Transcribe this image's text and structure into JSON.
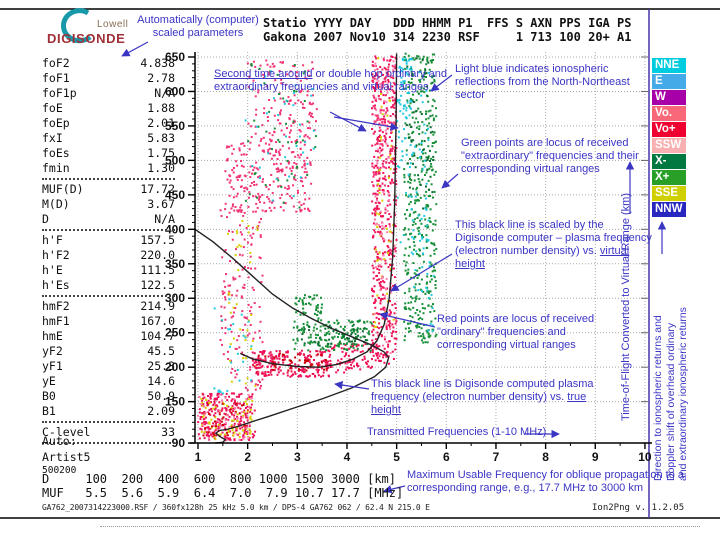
{
  "logo": {
    "line1": "Lowell",
    "line2": "DIGISONDE"
  },
  "station_header": {
    "line1": "Statio YYYY DAY   DDD HHMM P1  FFS S AXN PPS IGA PS",
    "line2": "Gakona 2007 Nov10 314 2230 RSF     1 713 100 20+ A1"
  },
  "param_groups": [
    [
      {
        "name": "foF2",
        "value": "4.838"
      },
      {
        "name": "foF1",
        "value": "2.78"
      },
      {
        "name": "foF1p",
        "value": "N/A"
      },
      {
        "name": "foE",
        "value": "1.88"
      },
      {
        "name": "foEp",
        "value": "2.01"
      },
      {
        "name": "fxI",
        "value": "5.83"
      },
      {
        "name": "foEs",
        "value": "1.75"
      },
      {
        "name": "fmin",
        "value": "1.30"
      }
    ],
    [
      {
        "name": "MUF(D)",
        "value": "17.72"
      },
      {
        "name": "M(D)",
        "value": "3.67"
      },
      {
        "name": "D",
        "value": "N/A"
      }
    ],
    [
      {
        "name": "h'F",
        "value": "157.5"
      },
      {
        "name": "h'F2",
        "value": "220.0"
      },
      {
        "name": "h'E",
        "value": "111.5"
      },
      {
        "name": "h'Es",
        "value": "122.5"
      }
    ],
    [
      {
        "name": "hmF2",
        "value": "214.9"
      },
      {
        "name": "hmF1",
        "value": "167.0"
      },
      {
        "name": "hmE",
        "value": "104.7"
      },
      {
        "name": "yF2",
        "value": "45.5"
      },
      {
        "name": "yF1",
        "value": "25.3"
      },
      {
        "name": "yE",
        "value": "14.6"
      },
      {
        "name": "B0",
        "value": "50.9"
      },
      {
        "name": "B1",
        "value": "2.09"
      }
    ],
    [
      {
        "name": "C-level",
        "value": "33"
      }
    ]
  ],
  "misc": {
    "auto_label": "Auto:",
    "artist": "Artist5",
    "code": "500200"
  },
  "muf_table": {
    "d_row": [
      "D",
      "100",
      "200",
      "400",
      "600",
      "800",
      "1000",
      "1500",
      "3000",
      "[km]"
    ],
    "muf_row": [
      "MUF",
      "5.5",
      "5.6",
      "5.9",
      "6.4",
      "7.0",
      "7.9",
      "10.7",
      "17.7",
      "[MHz]"
    ]
  },
  "footer": {
    "left": "GA762_2007314223000.RSF / 360fx128h 25 kHz 5.0 km / DPS-4 GA762 062 / 62.4 N 215.0 E",
    "right": "Ion2Png v. 1.2.05"
  },
  "legend": [
    {
      "label": "NNE",
      "color": "#00cce0"
    },
    {
      "label": "E",
      "color": "#44aae8"
    },
    {
      "label": "W",
      "color": "#a800a8"
    },
    {
      "label": "Vo.",
      "color": "#f86878"
    },
    {
      "label": "Vo+",
      "color": "#f00030"
    },
    {
      "label": "SSW",
      "color": "#f8b0b0"
    },
    {
      "label": "X-",
      "color": "#007840"
    },
    {
      "label": "X+",
      "color": "#28a028"
    },
    {
      "label": "SSE",
      "color": "#d0d000"
    },
    {
      "label": "NNW",
      "color": "#2828c0"
    }
  ],
  "vertical_labels": {
    "time_of_flight": "Time-of-Flight Converted to Virtual Range (km)",
    "direction_lines": [
      "Direction to ionospheric returns and",
      "Doppler shift of overhead ordinary",
      "and extraordinary ionospheric returns"
    ]
  },
  "annotations": [
    {
      "id": "auto-scaled",
      "parts": [
        {
          "t": "Automatically (computer) scaled parameters"
        }
      ]
    },
    {
      "id": "second-time-around",
      "parts": [
        {
          "t": "Second time around",
          "u": 1
        },
        {
          "t": " or double hop ordinary and extraordinary frequencies and virtual ranges"
        }
      ]
    },
    {
      "id": "light-blue",
      "parts": [
        {
          "t": "Light blue indicates ionospheric reflections from the North-Northeast sector"
        }
      ]
    },
    {
      "id": "green-points",
      "parts": [
        {
          "t": "Green points are locus of received \"extraordinary\" frequencies and their corresponding virtual ranges"
        }
      ]
    },
    {
      "id": "black-line-virtual",
      "parts": [
        {
          "t": "This black line is scaled by the Digisonde computer – plasma frequency (electron number density) vs. "
        },
        {
          "t": "virtual height",
          "u": 1
        }
      ]
    },
    {
      "id": "red-points",
      "parts": [
        {
          "t": "Red points are locus of received \"ordinary\" frequencies and corresponding virtual ranges"
        }
      ]
    },
    {
      "id": "black-line-true",
      "parts": [
        {
          "t": "This black line is Digisonde computed plasma frequency (electron number density) vs. "
        },
        {
          "t": "true height",
          "u": 1
        }
      ]
    },
    {
      "id": "transmitted-freq",
      "parts": [
        {
          "t": "Transmitted Frequencies (1-10 MHz)"
        }
      ]
    },
    {
      "id": "muf-oblique",
      "parts": [
        {
          "t": "Maximum Usable Frequency for oblique propagation to a corresponding range, e.g., 17.7 MHz to 3000 km"
        }
      ]
    }
  ],
  "chart_data": {
    "type": "scatter",
    "xlabel": "Transmitted Frequencies (1-10 MHz)",
    "ylabel": "Time-of-Flight Converted to Virtual Range (km)",
    "xlim": [
      1,
      10
    ],
    "ylim": [
      90,
      650
    ],
    "x_ticks": [
      1,
      2,
      3,
      4,
      5,
      6,
      7,
      8,
      9,
      10
    ],
    "y_ticks": [
      650,
      600,
      550,
      500,
      450,
      400,
      350,
      300,
      250,
      200,
      150,
      90
    ],
    "grid": true,
    "clusters": [
      {
        "x": [
          1.0,
          2.15
        ],
        "y": [
          93,
          162
        ],
        "n": 260,
        "color": "#ee1155"
      },
      {
        "x": [
          1.05,
          2.1
        ],
        "y": [
          95,
          155
        ],
        "n": 70,
        "color": "#d8d000"
      },
      {
        "x": [
          1.1,
          2.0
        ],
        "y": [
          100,
          150
        ],
        "n": 30,
        "color": "#c80000"
      },
      {
        "x": [
          1.0,
          2.1
        ],
        "y": [
          93,
          160
        ],
        "n": 50,
        "color": "#ff7faf"
      },
      {
        "x": [
          1.45,
          2.3
        ],
        "y": [
          165,
          435
        ],
        "n": 150,
        "color": "#ee3377"
      },
      {
        "x": [
          1.6,
          2.2
        ],
        "y": [
          170,
          430
        ],
        "n": 40,
        "color": "#d8d000"
      },
      {
        "x": [
          1.2,
          2.1
        ],
        "y": [
          160,
          300
        ],
        "n": 25,
        "color": "#20c8e0"
      },
      {
        "x": [
          2.1,
          3.65
        ],
        "y": [
          186,
          224
        ],
        "n": 220,
        "color": "#ee1155"
      },
      {
        "x": [
          2.2,
          3.6
        ],
        "y": [
          195,
          220
        ],
        "n": 40,
        "color": "#c80000"
      },
      {
        "x": [
          3.6,
          4.55
        ],
        "y": [
          192,
          235
        ],
        "n": 90,
        "color": "#ee1155"
      },
      {
        "x": [
          4.5,
          5.0
        ],
        "y": [
          205,
          655
        ],
        "n": 480,
        "color": "#ee1155"
      },
      {
        "x": [
          4.55,
          4.95
        ],
        "y": [
          250,
          650
        ],
        "n": 50,
        "color": "#d8d000"
      },
      {
        "x": [
          4.55,
          4.95
        ],
        "y": [
          210,
          650
        ],
        "n": 90,
        "color": "#ff7faf"
      },
      {
        "x": [
          4.5,
          5.0
        ],
        "y": [
          450,
          650
        ],
        "n": 80,
        "color": "#f23377"
      },
      {
        "x": [
          2.9,
          4.5
        ],
        "y": [
          224,
          268
        ],
        "n": 160,
        "color": "#189038"
      },
      {
        "x": [
          3.0,
          4.4
        ],
        "y": [
          228,
          262
        ],
        "n": 40,
        "color": "#0a6a30"
      },
      {
        "x": [
          2.95,
          3.5
        ],
        "y": [
          268,
          305
        ],
        "n": 45,
        "color": "#189038"
      },
      {
        "x": [
          5.15,
          5.8
        ],
        "y": [
          235,
          655
        ],
        "n": 420,
        "color": "#189038"
      },
      {
        "x": [
          5.2,
          5.75
        ],
        "y": [
          430,
          650
        ],
        "n": 60,
        "color": "#0a6a30"
      },
      {
        "x": [
          5.0,
          5.65
        ],
        "y": [
          380,
          655
        ],
        "n": 70,
        "color": "#20c8e0"
      },
      {
        "x": [
          5.05,
          5.3
        ],
        "y": [
          560,
          650
        ],
        "n": 40,
        "color": "#20c8e0"
      },
      {
        "x": [
          5.3,
          5.75
        ],
        "y": [
          250,
          420
        ],
        "n": 30,
        "color": "#20c8e0"
      },
      {
        "x": [
          1.55,
          3.3
        ],
        "y": [
          425,
          530
        ],
        "n": 240,
        "color": "#f23377"
      },
      {
        "x": [
          2.0,
          3.45
        ],
        "y": [
          530,
          645
        ],
        "n": 130,
        "color": "#f23377"
      },
      {
        "x": [
          1.9,
          3.4
        ],
        "y": [
          430,
          640
        ],
        "n": 50,
        "color": "#189038"
      },
      {
        "x": [
          1.9,
          3.4
        ],
        "y": [
          440,
          630
        ],
        "n": 35,
        "color": "#20c8e0"
      }
    ],
    "profiles": {
      "true_height_profile": [
        [
          0.94,
          400
        ],
        [
          1.3,
          382
        ],
        [
          1.7,
          358
        ],
        [
          2.1,
          332
        ],
        [
          2.5,
          306
        ],
        [
          2.9,
          286
        ],
        [
          3.3,
          270
        ],
        [
          3.7,
          256
        ],
        [
          4.1,
          244
        ],
        [
          4.5,
          232
        ],
        [
          4.75,
          222
        ],
        [
          4.84,
          214
        ],
        [
          4.78,
          200
        ],
        [
          4.55,
          186
        ],
        [
          4.1,
          170
        ],
        [
          3.5,
          154
        ],
        [
          2.9,
          140
        ],
        [
          2.4,
          128
        ],
        [
          2.05,
          120
        ],
        [
          1.8,
          114
        ],
        [
          1.6,
          110
        ],
        [
          1.42,
          108
        ],
        [
          1.36,
          104
        ],
        [
          1.45,
          99
        ],
        [
          1.55,
          95
        ],
        [
          1.5,
          91
        ],
        [
          1.35,
          90
        ]
      ],
      "virtual_height_trace": [
        [
          1.85,
          220
        ],
        [
          2.1,
          212
        ],
        [
          2.5,
          205
        ],
        [
          3.0,
          201
        ],
        [
          3.45,
          200
        ],
        [
          3.8,
          204
        ],
        [
          4.1,
          211
        ],
        [
          4.4,
          222
        ],
        [
          4.6,
          238
        ],
        [
          4.75,
          262
        ],
        [
          4.85,
          300
        ],
        [
          4.92,
          360
        ],
        [
          4.96,
          440
        ],
        [
          4.99,
          560
        ],
        [
          5.0,
          655
        ]
      ]
    }
  }
}
